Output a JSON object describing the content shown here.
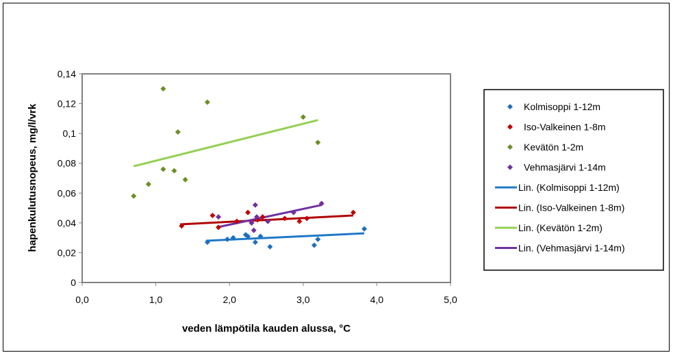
{
  "chart_data": {
    "type": "scatter",
    "title": "",
    "xlabel": "veden lämpötila kauden alussa, °C",
    "ylabel": "hapenkulutusnopeus, mg/l/vrk",
    "xlim": [
      0,
      5
    ],
    "ylim": [
      0,
      0.14
    ],
    "x_ticks": [
      "0,0",
      "1,0",
      "2,0",
      "3,0",
      "4,0",
      "5,0"
    ],
    "y_ticks": [
      "0",
      "0,02",
      "0,04",
      "0,06",
      "0,08",
      "0,1",
      "0,12",
      "0,14"
    ],
    "grid": false,
    "legend_position": "right",
    "series": [
      {
        "name": "Kolmisoppi 1-12m",
        "color": "#1f6fbf",
        "marker": "diamond",
        "points": [
          [
            1.7,
            0.027
          ],
          [
            1.97,
            0.029
          ],
          [
            2.05,
            0.03
          ],
          [
            2.22,
            0.032
          ],
          [
            2.25,
            0.031
          ],
          [
            2.35,
            0.027
          ],
          [
            2.42,
            0.031
          ],
          [
            2.55,
            0.024
          ],
          [
            3.15,
            0.025
          ],
          [
            3.2,
            0.029
          ],
          [
            3.83,
            0.036
          ]
        ]
      },
      {
        "name": "Iso-Valkeinen 1-8m",
        "color": "#c00000",
        "marker": "diamond",
        "points": [
          [
            1.35,
            0.038
          ],
          [
            1.77,
            0.045
          ],
          [
            1.85,
            0.037
          ],
          [
            2.1,
            0.041
          ],
          [
            2.25,
            0.047
          ],
          [
            2.3,
            0.04
          ],
          [
            2.38,
            0.042
          ],
          [
            2.45,
            0.044
          ],
          [
            2.75,
            0.043
          ],
          [
            2.95,
            0.041
          ],
          [
            3.05,
            0.043
          ],
          [
            3.68,
            0.047
          ]
        ]
      },
      {
        "name": "Kevätön 1-2m",
        "color": "#6b8e23",
        "marker": "diamond",
        "points": [
          [
            0.7,
            0.058
          ],
          [
            0.9,
            0.066
          ],
          [
            1.1,
            0.13
          ],
          [
            1.1,
            0.076
          ],
          [
            1.25,
            0.075
          ],
          [
            1.3,
            0.101
          ],
          [
            1.4,
            0.069
          ],
          [
            1.7,
            0.121
          ],
          [
            3.0,
            0.111
          ],
          [
            3.2,
            0.094
          ]
        ]
      },
      {
        "name": "Vehmasjärvi 1-14m",
        "color": "#7030a0",
        "marker": "diamond",
        "points": [
          [
            1.85,
            0.044
          ],
          [
            2.3,
            0.04
          ],
          [
            2.33,
            0.035
          ],
          [
            2.35,
            0.052
          ],
          [
            2.37,
            0.044
          ],
          [
            2.52,
            0.041
          ],
          [
            2.87,
            0.047
          ],
          [
            3.25,
            0.053
          ]
        ]
      },
      {
        "name": "Lin. (Kolmisoppi 1-12m)",
        "color": "#1f78c8",
        "line": [
          [
            1.68,
            0.028
          ],
          [
            3.83,
            0.033
          ]
        ]
      },
      {
        "name": "Lin. (Iso-Valkeinen 1-8m)",
        "color": "#b00000",
        "line": [
          [
            1.33,
            0.039
          ],
          [
            3.68,
            0.045
          ]
        ]
      },
      {
        "name": "Lin. (Kevätön 1-2m)",
        "color": "#92d050",
        "line": [
          [
            0.7,
            0.078
          ],
          [
            3.2,
            0.109
          ]
        ]
      },
      {
        "name": "Lin. (Vehmasjärvi 1-14m)",
        "color": "#7030a0",
        "line": [
          [
            1.83,
            0.037
          ],
          [
            3.25,
            0.052
          ]
        ]
      }
    ]
  }
}
